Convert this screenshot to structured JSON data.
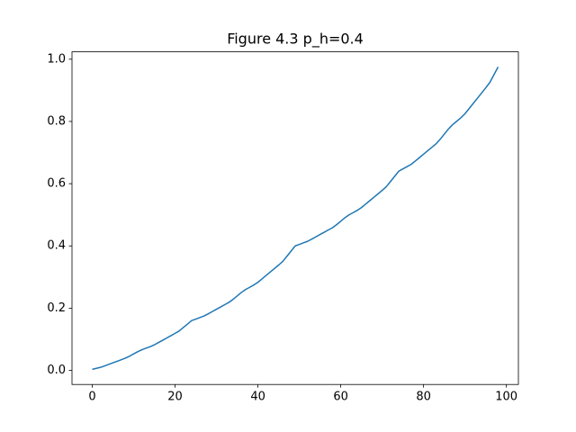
{
  "chart_data": {
    "type": "line",
    "title": "Figure 4.3 p_h=0.4",
    "x": [
      0,
      1,
      2,
      3,
      4,
      5,
      6,
      7,
      8,
      9,
      10,
      11,
      12,
      13,
      14,
      15,
      16,
      17,
      18,
      19,
      20,
      21,
      22,
      23,
      24,
      25,
      26,
      27,
      28,
      29,
      30,
      31,
      32,
      33,
      34,
      35,
      36,
      37,
      38,
      39,
      40,
      41,
      42,
      43,
      44,
      45,
      46,
      47,
      48,
      49,
      50,
      51,
      52,
      53,
      54,
      55,
      56,
      57,
      58,
      59,
      60,
      61,
      62,
      63,
      64,
      65,
      66,
      67,
      68,
      69,
      70,
      71,
      72,
      73,
      74,
      75,
      76,
      77,
      78,
      79,
      80,
      81,
      82,
      83,
      84,
      85,
      86,
      87,
      88,
      89,
      90,
      91,
      92,
      93,
      94,
      95,
      96,
      97,
      98
    ],
    "series": [
      {
        "color": "#1f77b4",
        "values": [
          0.0033,
          0.0065,
          0.0098,
          0.0145,
          0.0194,
          0.0244,
          0.0293,
          0.0342,
          0.0392,
          0.0456,
          0.053,
          0.0603,
          0.0665,
          0.0714,
          0.0763,
          0.0822,
          0.0895,
          0.0969,
          0.1042,
          0.1116,
          0.119,
          0.1268,
          0.1379,
          0.1489,
          0.16,
          0.1649,
          0.1699,
          0.1748,
          0.1818,
          0.1892,
          0.1966,
          0.2039,
          0.2113,
          0.2186,
          0.2283,
          0.2394,
          0.2505,
          0.2597,
          0.267,
          0.2744,
          0.2832,
          0.2942,
          0.3053,
          0.3164,
          0.3274,
          0.3385,
          0.3503,
          0.3668,
          0.3834,
          0.4,
          0.4049,
          0.4099,
          0.4148,
          0.4218,
          0.4292,
          0.4366,
          0.4439,
          0.4513,
          0.4586,
          0.4683,
          0.4794,
          0.4905,
          0.4997,
          0.507,
          0.5144,
          0.5232,
          0.5342,
          0.5453,
          0.5564,
          0.5674,
          0.5785,
          0.5903,
          0.6068,
          0.6234,
          0.64,
          0.6474,
          0.6547,
          0.6621,
          0.6727,
          0.6838,
          0.6948,
          0.7059,
          0.717,
          0.728,
          0.7426,
          0.7591,
          0.7757,
          0.7895,
          0.8006,
          0.8117,
          0.8248,
          0.8414,
          0.858,
          0.8745,
          0.8911,
          0.9077,
          0.9253,
          0.9502,
          0.9751
        ]
      }
    ],
    "xlim": [
      -4.9,
      102.9
    ],
    "ylim": [
      -0.0453,
      1.0237
    ],
    "xticks": [
      0,
      20,
      40,
      60,
      80,
      100
    ],
    "yticks": [
      {
        "value": 0,
        "label": "0.0"
      },
      {
        "value": 0.2,
        "label": "0.2"
      },
      {
        "value": 0.4,
        "label": "0.4"
      },
      {
        "value": 0.6,
        "label": "0.6"
      },
      {
        "value": 0.8,
        "label": "0.8"
      },
      {
        "value": 1,
        "label": "1.0"
      }
    ]
  }
}
